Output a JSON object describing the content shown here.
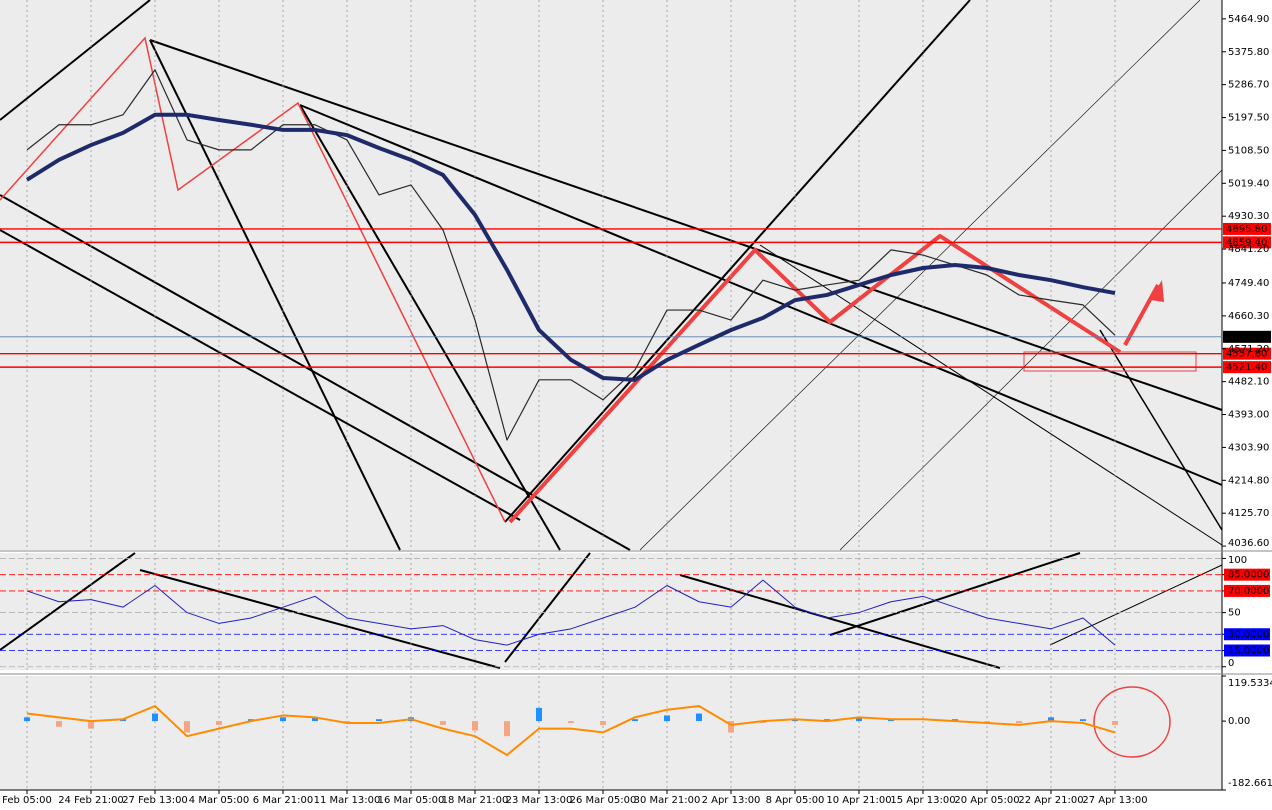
{
  "chart_data": [
    {
      "type": "line",
      "categories": [
        "Feb 05:00",
        null,
        "24 Feb 21:00",
        null,
        "27 Feb 13:00",
        null,
        "4 Mar 05:00",
        null,
        "6 Mar 21:00",
        null,
        "11 Mar 13:00",
        null,
        "16 Mar 05:00",
        null,
        "18 Mar 21:00",
        null,
        "23 Mar 13:00",
        null,
        "26 Mar 05:00",
        null,
        "30 Mar 21:00",
        null,
        "2 Apr 13:00",
        null,
        "8 Apr 05:00",
        null,
        "10 Apr 21:00",
        null,
        "15 Apr 13:00",
        null,
        "20 Apr 05:00",
        null,
        "22 Apr 21:00",
        null,
        "27 Apr 13:00"
      ],
      "series": [
        {
          "name": "Price",
          "color": "#2a2a2a",
          "width": 1.2,
          "values": [
            5110,
            5178,
            5178,
            5205,
            5327,
            5137,
            5110,
            5110,
            5178,
            5178,
            5137,
            4988,
            5015,
            4893,
            4649,
            4324,
            4487,
            4487,
            4433,
            4514,
            4676,
            4676,
            4649,
            4757,
            4730,
            4744,
            4757,
            4839,
            4825,
            4798,
            4771,
            4717,
            4703,
            4690,
            4608
          ]
        },
        {
          "name": "Moving Average",
          "color": "#1f2a6b",
          "width": 4,
          "values": [
            5029,
            5083,
            5123,
            5156,
            5205,
            5205,
            5191,
            5178,
            5164,
            5164,
            5150,
            5115,
            5083,
            5042,
            4934,
            4785,
            4622,
            4541,
            4492,
            4487,
            4541,
            4582,
            4622,
            4655,
            4703,
            4717,
            4744,
            4771,
            4790,
            4798,
            4790,
            4771,
            4757,
            4738,
            4722
          ]
        }
      ],
      "ylim": [
        4026,
        5516
      ],
      "yticks": [
        {
          "value": 5464.9,
          "label": "5464.90"
        },
        {
          "value": 5375.8,
          "label": "5375.80"
        },
        {
          "value": 5286.7,
          "label": "5286.70"
        },
        {
          "value": 5197.5,
          "label": "5197.50"
        },
        {
          "value": 5108.5,
          "label": "5108.50"
        },
        {
          "value": 5019.4,
          "label": "5019.40"
        },
        {
          "value": 4930.3,
          "label": "4930.30"
        },
        {
          "value": 4841.2,
          "label": "4841.20"
        },
        {
          "value": 4749.4,
          "label": "4749.40"
        },
        {
          "value": 4660.3,
          "label": "4660.30"
        },
        {
          "value": 4571.2,
          "label": "4571.20"
        },
        {
          "value": 4482.1,
          "label": "4482.10"
        },
        {
          "value": 4393,
          "label": "4393.00"
        },
        {
          "value": 4303.9,
          "label": "4303.90"
        },
        {
          "value": 4214.8,
          "label": "4214.80"
        },
        {
          "value": 4125.7,
          "label": "4125.70"
        },
        {
          "value": 4036.6,
          "label": "4036.60"
        }
      ],
      "levels": [
        {
          "value": 4895.8,
          "label": "4895.80",
          "color": "#ff0000"
        },
        {
          "value": 4859.4,
          "label": "4859.40",
          "color": "#ff0000"
        },
        {
          "value": 4603.49,
          "label": "4603.49",
          "color": "#000000"
        },
        {
          "value": 4557.8,
          "label": "4557.80",
          "color": "#ff0000"
        },
        {
          "value": 4521.4,
          "label": "4521.40",
          "color": "#ff0000"
        }
      ],
      "grid": true
    },
    {
      "type": "line",
      "series": [
        {
          "name": "Oscillator",
          "color": "#2020c0",
          "width": 1,
          "values": [
            70,
            60,
            62,
            55,
            75,
            50,
            40,
            45,
            55,
            65,
            45,
            40,
            35,
            38,
            25,
            20,
            30,
            35,
            45,
            55,
            75,
            60,
            55,
            80,
            55,
            45,
            50,
            60,
            65,
            55,
            45,
            40,
            35,
            45,
            20
          ]
        }
      ],
      "ylim": [
        -3,
        105
      ],
      "yticks": [
        100,
        {
          "value": 85,
          "label": "85.0000"
        },
        {
          "value": 70,
          "label": "70.0000"
        },
        50,
        {
          "value": 30,
          "label": "30.0000"
        },
        {
          "value": 15,
          "label": "15.0000"
        },
        0
      ],
      "grid_colors": [
        "#b0b0b0",
        "#ff0000",
        "#ff0000",
        "#b0b0b0",
        "#0000ff",
        "#0000ff",
        "#b0b0b0"
      ]
    },
    {
      "type": "bar",
      "series": [
        {
          "name": "Histogram",
          "color": "#1e90ff",
          "negative_color": "#f4a582",
          "values": [
            10,
            -15,
            -20,
            5,
            20,
            -30,
            -10,
            5,
            10,
            10,
            -5,
            5,
            10,
            -10,
            -25,
            -40,
            35,
            -5,
            -10,
            5,
            15,
            20,
            -30,
            -5,
            5,
            5,
            10,
            5,
            0,
            5,
            -5,
            -5,
            10,
            5,
            -10
          ]
        },
        {
          "name": "MACD",
          "type": "line",
          "color": "#ff8c00",
          "width": 2,
          "values": [
            20,
            10,
            0,
            5,
            40,
            -40,
            -20,
            0,
            15,
            10,
            -5,
            -5,
            5,
            -20,
            -40,
            -90,
            -20,
            -20,
            -30,
            10,
            30,
            40,
            -10,
            0,
            5,
            0,
            10,
            5,
            5,
            0,
            -5,
            -10,
            0,
            -5,
            -30
          ]
        }
      ],
      "ylim": [
        -182.6615,
        119.5334
      ],
      "yticks": [
        119.5334,
        {
          "value": 0,
          "label": "0.00"
        },
        -182.6615
      ]
    }
  ]
}
